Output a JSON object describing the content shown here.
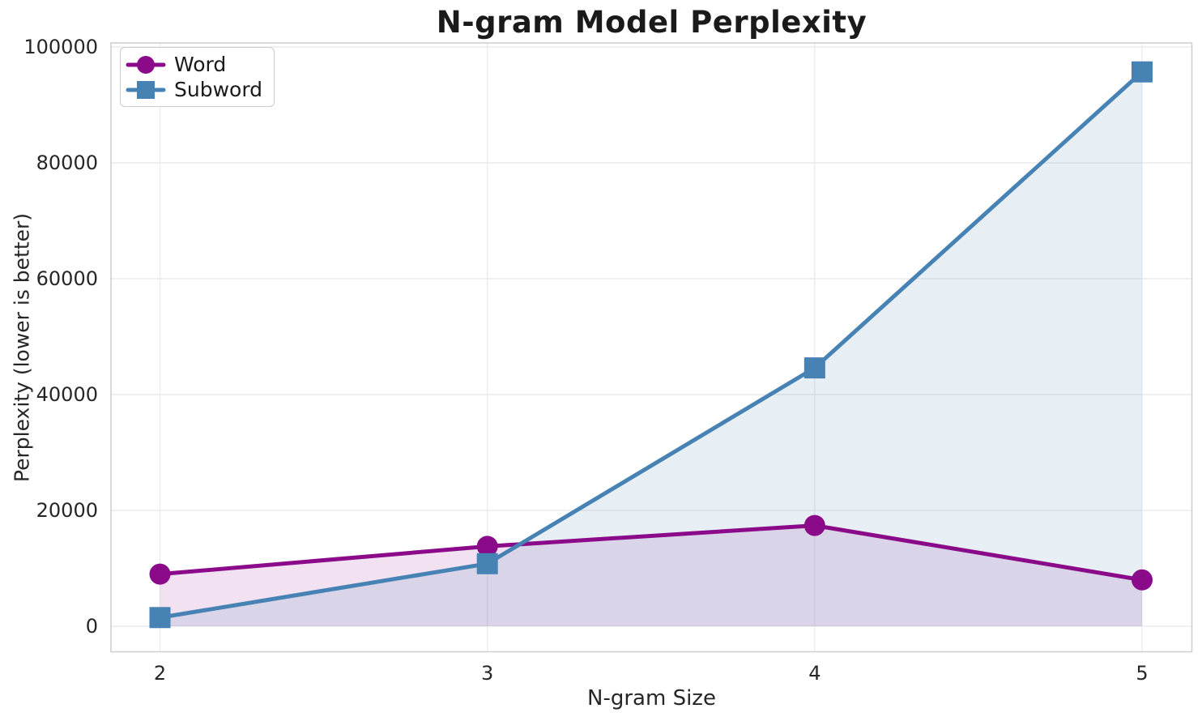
{
  "chart_data": {
    "type": "line",
    "title": "N-gram Model Perplexity",
    "xlabel": "N-gram Size",
    "ylabel": "Perplexity (lower is better)",
    "x": [
      2,
      3,
      4,
      5
    ],
    "xtick_labels": [
      "2",
      "3",
      "4",
      "5"
    ],
    "ytick_values": [
      0,
      20000,
      40000,
      60000,
      80000,
      100000
    ],
    "ytick_labels": [
      "0",
      "20000",
      "40000",
      "60000",
      "80000",
      "100000"
    ],
    "ylim": [
      0,
      100000
    ],
    "xlim": [
      1.85,
      5.15
    ],
    "grid": true,
    "background_color": "#ffffff",
    "grid_color": "#ececec",
    "spine_color": "#d0d0d0",
    "legend": {
      "position": "upper left",
      "entries": [
        "Word",
        "Subword"
      ]
    },
    "series": [
      {
        "name": "Word",
        "marker": "circle",
        "color": "#8A0A8A",
        "fill_opacity": 0.12,
        "values": [
          9000,
          13800,
          17400,
          8000
        ]
      },
      {
        "name": "Subword",
        "marker": "square",
        "color": "#4682B4",
        "fill_opacity": 0.13,
        "values": [
          1500,
          10800,
          44600,
          95700
        ]
      }
    ]
  }
}
